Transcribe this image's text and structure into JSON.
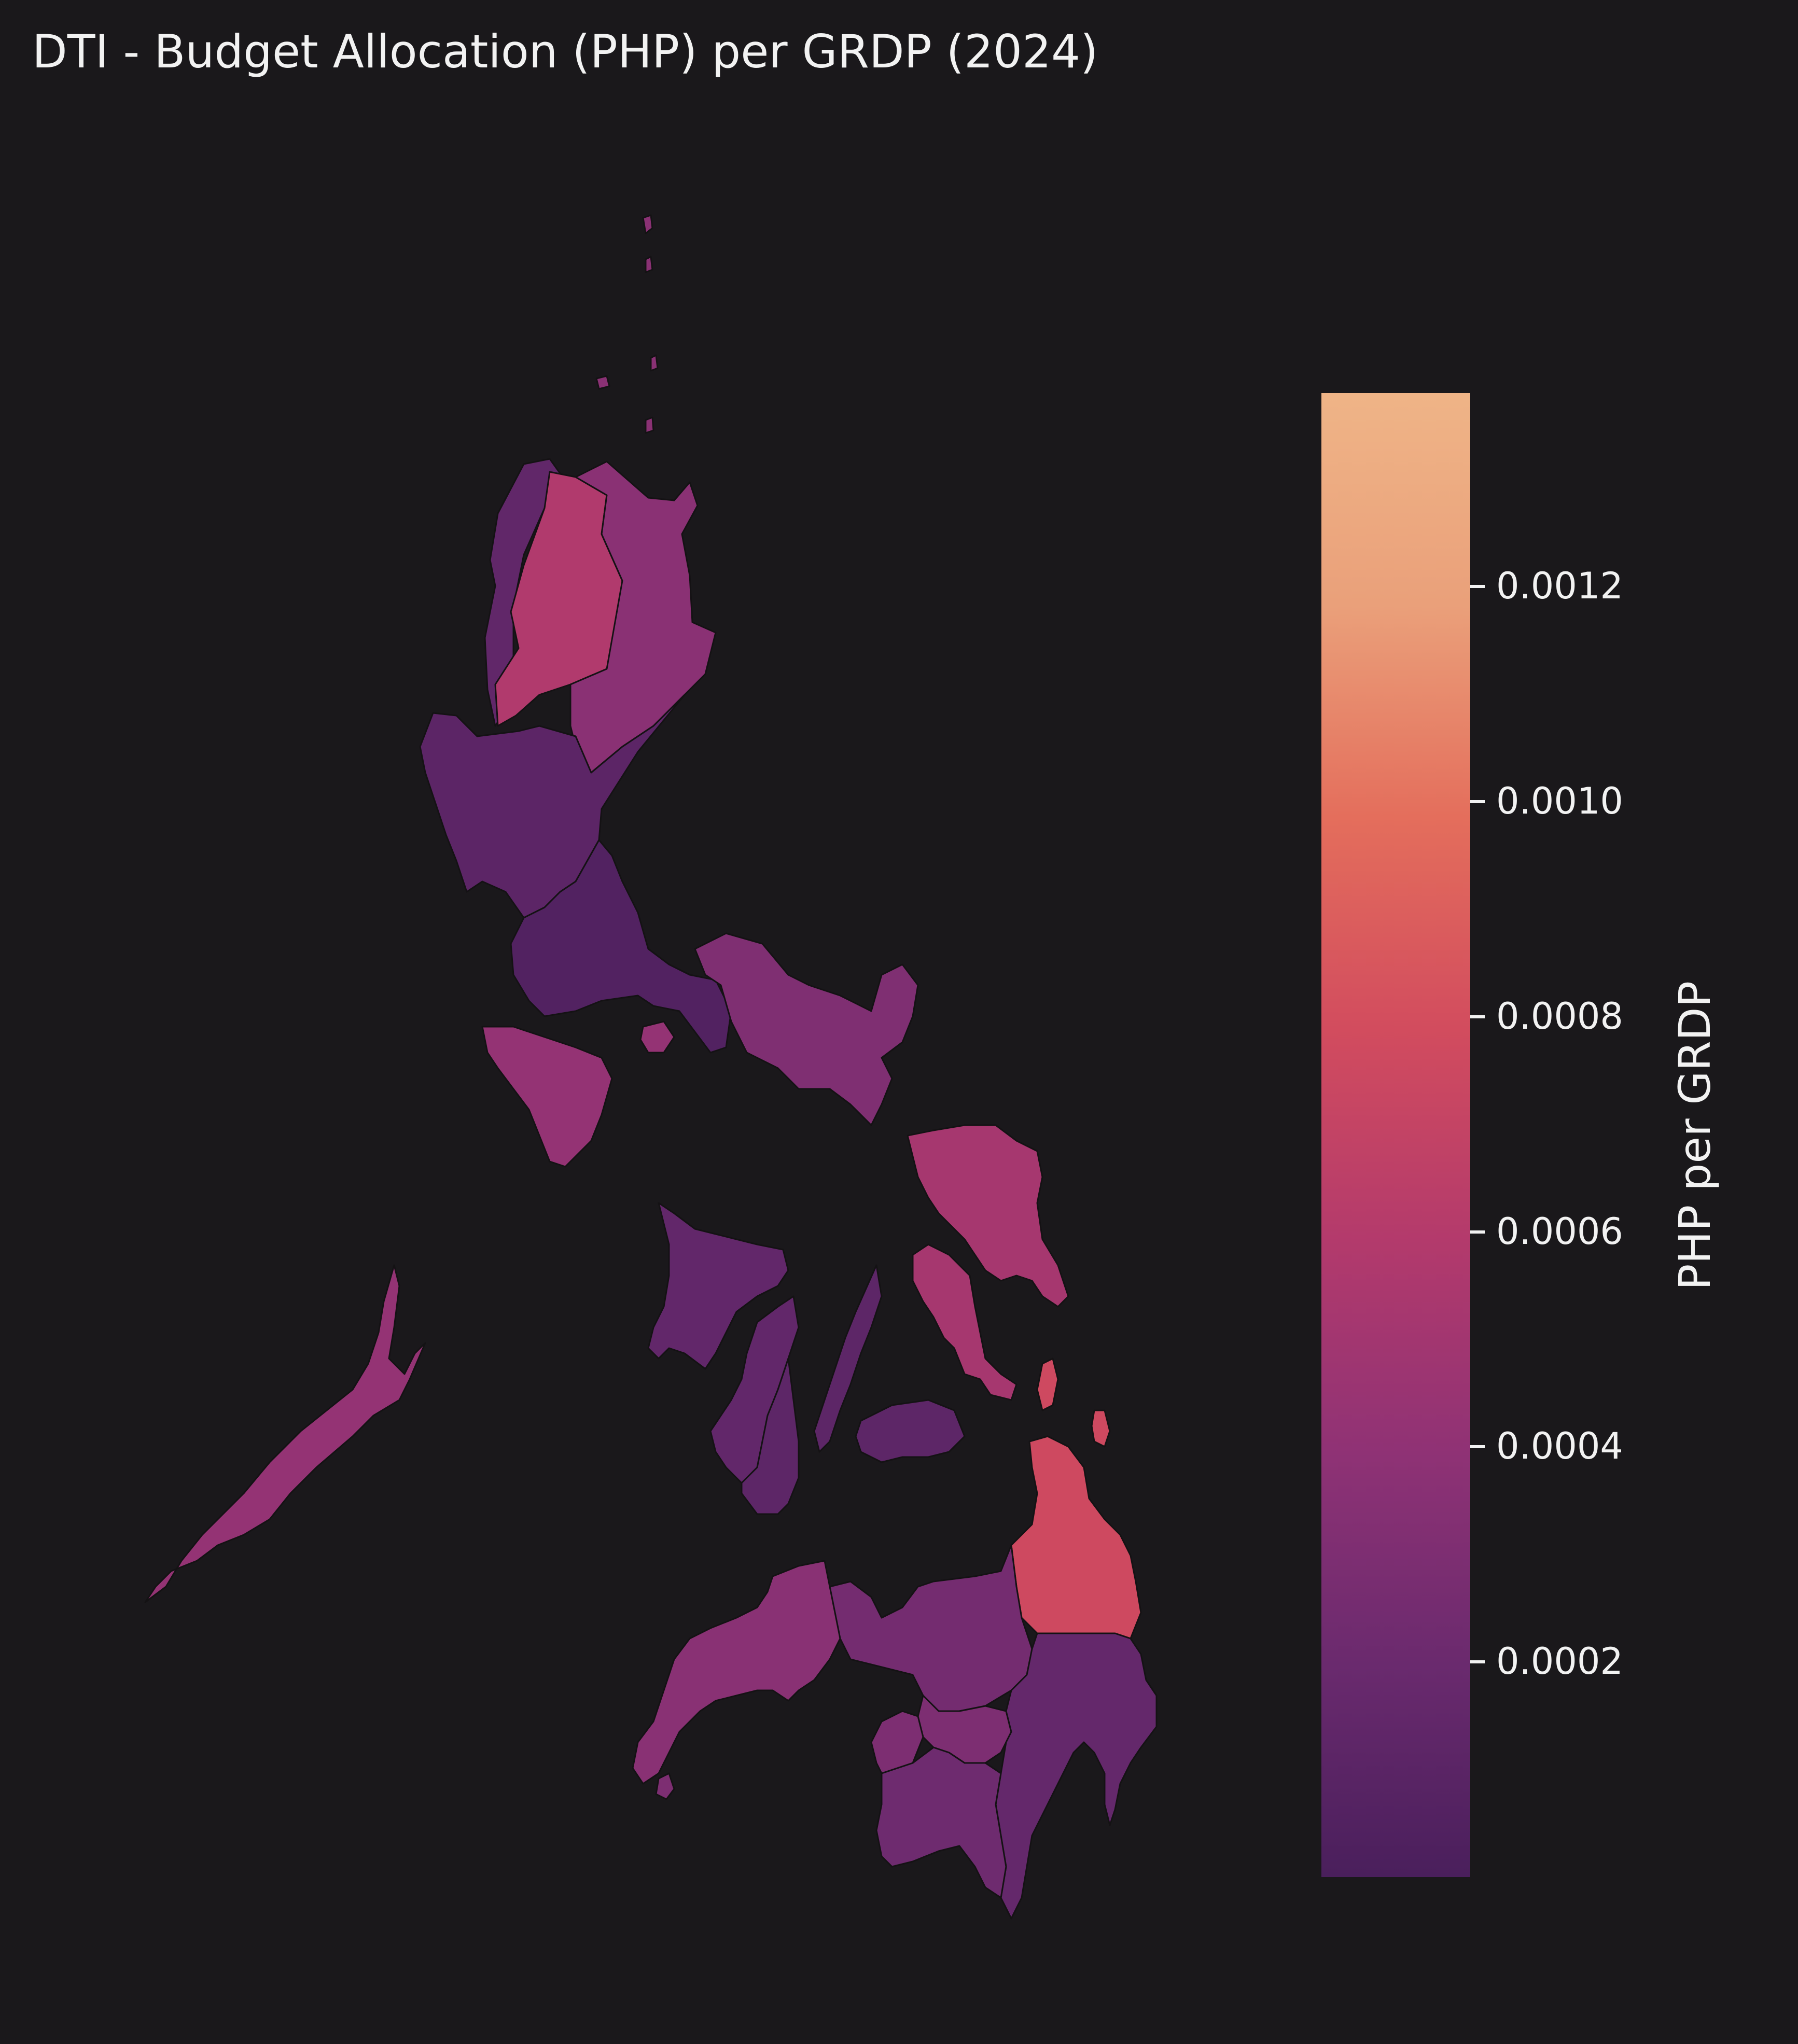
{
  "title": "DTI - Budget Allocation (PHP) per GRDP (2024)",
  "colorbar": {
    "label": "PHP per GRDP",
    "min": 0.0,
    "max": 0.00138,
    "ticks": [
      {
        "value": 0.0002,
        "label": "0.0002"
      },
      {
        "value": 0.0004,
        "label": "0.0004"
      },
      {
        "value": 0.0006,
        "label": "0.0006"
      },
      {
        "value": 0.0008,
        "label": "0.0008"
      },
      {
        "value": 0.001,
        "label": "0.0010"
      },
      {
        "value": 0.0012,
        "label": "0.0012"
      }
    ],
    "colormap": "flare-dark",
    "stops": [
      "#4a1f5c",
      "#6a2a6e",
      "#8f3275",
      "#b33a6c",
      "#d24c5e",
      "#e46e5c",
      "#eaa07a",
      "#efb487"
    ]
  },
  "regions": {
    "ilocos": 0.00014,
    "cordillera": 0.00058,
    "cagayan_valley": 0.00037,
    "central_luzon": 0.00011,
    "calabarzon": 5e-05,
    "mimaropa": 0.00042,
    "bicol": 0.00031,
    "western_visayas": 0.00015,
    "central_visayas": 0.00012,
    "eastern_visayas": 0.00052,
    "zamboanga": 0.00036,
    "northern_mindanao": 0.00025,
    "davao": 0.00016,
    "soccsksargen": 0.00022,
    "caraga": 0.00076,
    "barmm": 0.0003
  }
}
